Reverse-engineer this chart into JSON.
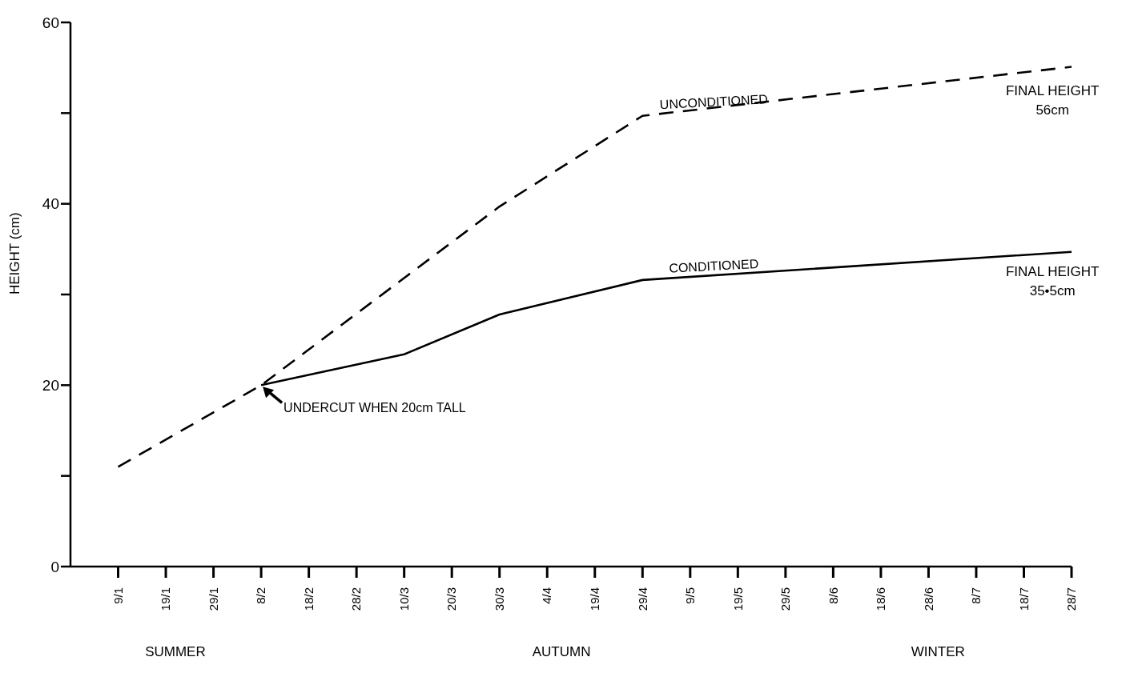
{
  "chart_data": {
    "type": "line",
    "ylabel": "HEIGHT (cm)",
    "categories": [
      "9/1",
      "19/1",
      "29/1",
      "8/2",
      "18/2",
      "28/2",
      "10/3",
      "20/3",
      "30/3",
      "4/4",
      "19/4",
      "29/4",
      "9/5",
      "19/5",
      "29/5",
      "8/6",
      "18/6",
      "28/6",
      "8/7",
      "18/7",
      "28/7"
    ],
    "series": [
      {
        "name": "UNCONDITIONED",
        "color": "#000000",
        "line_style": "dashed",
        "values": [
          11,
          null,
          null,
          20,
          null,
          null,
          null,
          null,
          39.7,
          null,
          null,
          49.7,
          null,
          null,
          null,
          null,
          null,
          null,
          null,
          null,
          55.1
        ]
      },
      {
        "name": "CONDITIONED",
        "color": "#000000",
        "line_style": "solid",
        "values": [
          null,
          null,
          null,
          20,
          null,
          null,
          23.4,
          null,
          27.8,
          null,
          null,
          31.6,
          null,
          null,
          null,
          null,
          null,
          null,
          null,
          null,
          34.7
        ]
      }
    ],
    "ylim": [
      0,
      60
    ],
    "yticks": [
      0,
      {
        "value": 10,
        "label": null
      },
      20,
      {
        "value": 30,
        "label": null
      },
      40,
      {
        "value": 50,
        "label": null
      },
      60
    ],
    "grid": false,
    "legend": false,
    "marker": "none",
    "annotations": [
      "SUMMER",
      "AUTUMN",
      "WINTER",
      "FINAL HEIGHT\n56cm",
      "FINAL HEIGHT\n35•5cm",
      {
        "text": "UNDERCUT WHEN 20cm TALL",
        "x": "8/2",
        "y": 20
      }
    ]
  }
}
